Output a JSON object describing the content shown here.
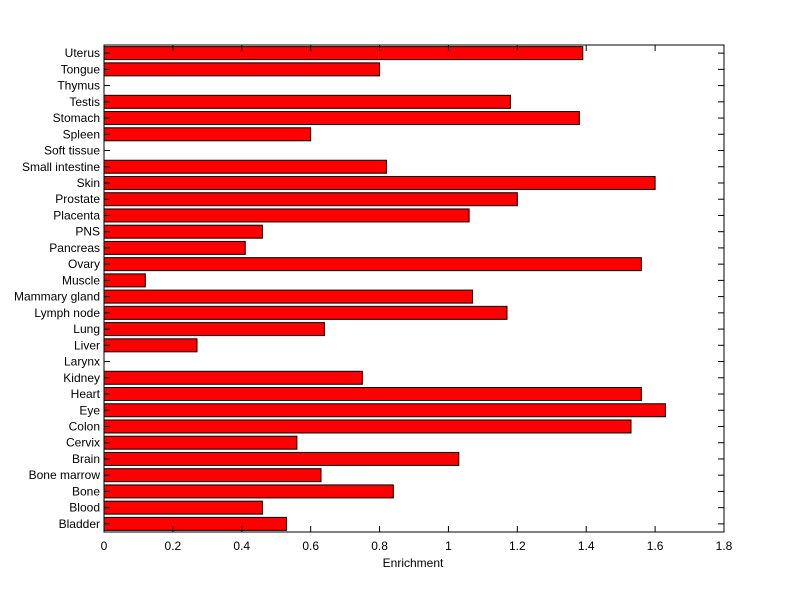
{
  "chart_data": {
    "type": "bar",
    "orientation": "horizontal",
    "title": "",
    "xlabel": "Enrichment",
    "ylabel": "",
    "xlim": [
      0,
      1.8
    ],
    "xticks": [
      0,
      0.2,
      0.4,
      0.6,
      0.8,
      1,
      1.2,
      1.4,
      1.6,
      1.8
    ],
    "xtick_labels": [
      "0",
      "0.2",
      "0.4",
      "0.6",
      "0.8",
      "1",
      "1.2",
      "1.4",
      "1.6",
      "1.8"
    ],
    "grid": false,
    "legend": "none",
    "bar_color": "#ff0000",
    "categories": [
      "Bladder",
      "Blood",
      "Bone",
      "Bone marrow",
      "Brain",
      "Cervix",
      "Colon",
      "Eye",
      "Heart",
      "Kidney",
      "Larynx",
      "Liver",
      "Lung",
      "Lymph node",
      "Mammary gland",
      "Muscle",
      "Ovary",
      "Pancreas",
      "PNS",
      "Placenta",
      "Prostate",
      "Skin",
      "Small intestine",
      "Soft tissue",
      "Spleen",
      "Stomach",
      "Testis",
      "Thymus",
      "Tongue",
      "Uterus"
    ],
    "values": [
      0.53,
      0.46,
      0.84,
      0.63,
      1.03,
      0.56,
      1.53,
      1.63,
      1.56,
      0.75,
      0,
      0.27,
      0.64,
      1.17,
      1.07,
      0.12,
      1.56,
      0.41,
      0.46,
      1.06,
      1.2,
      1.6,
      0.82,
      0,
      0.6,
      1.38,
      1.18,
      0,
      0.8,
      1.39
    ]
  }
}
